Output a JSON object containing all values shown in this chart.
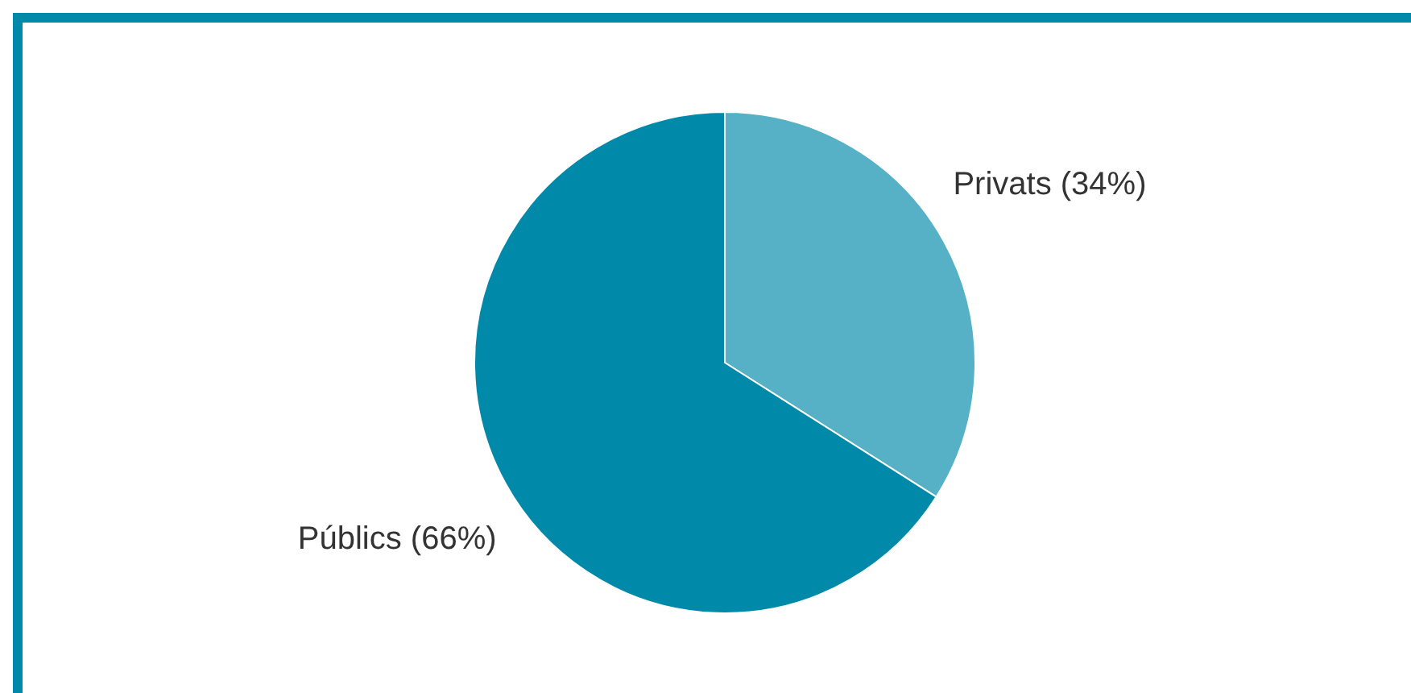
{
  "chart_data": {
    "type": "pie",
    "categories": [
      "Privats (34%)",
      "Públics (66%)"
    ],
    "values": [
      34,
      66
    ],
    "colors": [
      "#56b0c6",
      "#0089a8"
    ],
    "legend": false
  }
}
